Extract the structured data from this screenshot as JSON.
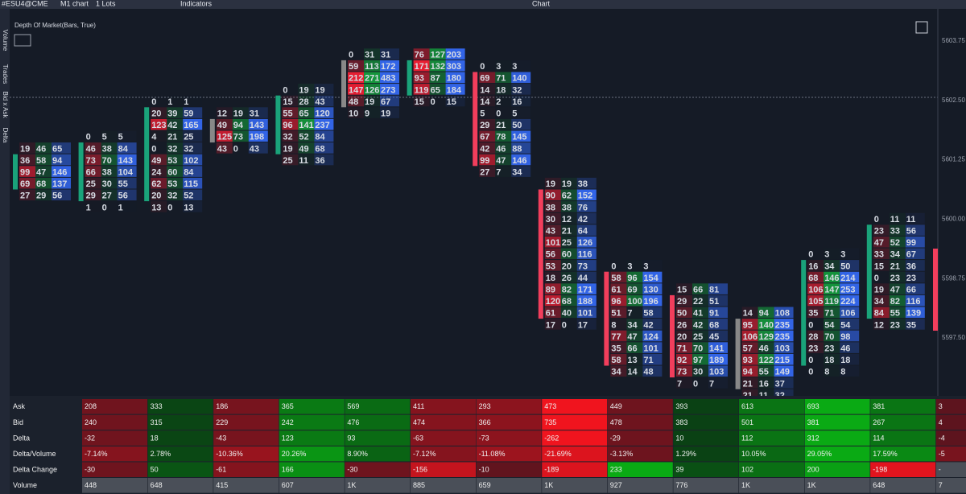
{
  "toolbar": {
    "symbol": "#ESU4@CME",
    "chart": "M1 chart",
    "lots": "1 Lots",
    "indicators": "Indicators",
    "title": "Chart"
  },
  "side_labels": [
    "Volume",
    "Trades",
    "Bid x Ask",
    "Delta"
  ],
  "indicator_label": "Depth Of Market(Bars, True)",
  "price_axis": [
    "5603.75",
    "5602.50",
    "5601.25",
    "5600.00",
    "5598.75",
    "5597.50"
  ],
  "footprint": {
    "bars": [
      {
        "rows": [
          [
            19,
            46,
            65
          ],
          [
            36,
            58,
            94
          ],
          [
            99,
            47,
            146
          ],
          [
            69,
            68,
            137
          ],
          [
            27,
            29,
            56
          ]
        ]
      },
      {
        "rows": [
          [
            0,
            5,
            5
          ],
          [
            46,
            38,
            84
          ],
          [
            73,
            70,
            143
          ],
          [
            66,
            38,
            104
          ],
          [
            25,
            30,
            55
          ],
          [
            29,
            27,
            56
          ],
          [
            1,
            0,
            1
          ]
        ]
      },
      {
        "rows": [
          [
            0,
            1,
            1
          ],
          [
            20,
            39,
            59
          ],
          [
            123,
            42,
            165
          ],
          [
            4,
            21,
            25
          ],
          [
            0,
            32,
            32
          ],
          [
            49,
            53,
            102
          ],
          [
            24,
            60,
            84
          ],
          [
            62,
            53,
            115
          ],
          [
            20,
            32,
            52
          ],
          [
            13,
            0,
            13
          ]
        ]
      },
      {
        "rows": [
          [
            12,
            19,
            31
          ],
          [
            49,
            94,
            143
          ],
          [
            125,
            73,
            198
          ],
          [
            43,
            0,
            43
          ]
        ]
      },
      {
        "rows": [
          [
            0,
            19,
            19
          ],
          [
            15,
            28,
            43
          ],
          [
            55,
            65,
            120
          ],
          [
            96,
            141,
            237
          ],
          [
            32,
            52,
            84
          ],
          [
            19,
            49,
            68
          ],
          [
            25,
            11,
            36
          ]
        ]
      },
      {
        "rows": [
          [
            0,
            31,
            31
          ],
          [
            59,
            113,
            172
          ],
          [
            212,
            271,
            483
          ],
          [
            147,
            126,
            273
          ],
          [
            48,
            19,
            67
          ],
          [
            10,
            9,
            19
          ]
        ]
      },
      {
        "rows": [
          [
            76,
            127,
            203
          ],
          [
            171,
            132,
            303
          ],
          [
            93,
            87,
            180
          ],
          [
            119,
            65,
            184
          ],
          [
            15,
            0,
            15
          ]
        ]
      },
      {
        "rows": [
          [
            0,
            3,
            3
          ],
          [
            69,
            71,
            140
          ],
          [
            14,
            18,
            32
          ],
          [
            14,
            2,
            16
          ],
          [
            5,
            0,
            5
          ],
          [
            29,
            21,
            50
          ],
          [
            67,
            78,
            145
          ],
          [
            42,
            46,
            88
          ],
          [
            99,
            47,
            146
          ],
          [
            27,
            7,
            34
          ]
        ]
      },
      {
        "rows": [
          [
            19,
            19,
            38
          ],
          [
            90,
            62,
            152
          ],
          [
            38,
            38,
            76
          ],
          [
            30,
            12,
            42
          ],
          [
            43,
            21,
            64
          ],
          [
            101,
            25,
            126
          ],
          [
            56,
            60,
            116
          ],
          [
            53,
            20,
            73
          ],
          [
            18,
            26,
            44
          ],
          [
            89,
            82,
            171
          ],
          [
            120,
            68,
            188
          ],
          [
            61,
            40,
            101
          ],
          [
            17,
            0,
            17
          ]
        ]
      },
      {
        "rows": [
          [
            0,
            3,
            3
          ],
          [
            58,
            96,
            154
          ],
          [
            61,
            69,
            130
          ],
          [
            96,
            100,
            196
          ],
          [
            51,
            7,
            58
          ],
          [
            8,
            34,
            42
          ],
          [
            77,
            47,
            124
          ],
          [
            35,
            66,
            101
          ],
          [
            58,
            13,
            71
          ],
          [
            34,
            14,
            48
          ]
        ]
      },
      {
        "rows": [
          [
            15,
            66,
            81
          ],
          [
            29,
            22,
            51
          ],
          [
            50,
            41,
            91
          ],
          [
            26,
            42,
            68
          ],
          [
            20,
            25,
            45
          ],
          [
            71,
            70,
            141
          ],
          [
            92,
            97,
            189
          ],
          [
            73,
            30,
            103
          ],
          [
            7,
            0,
            7
          ]
        ]
      },
      {
        "rows": [
          [
            14,
            94,
            108
          ],
          [
            95,
            140,
            235
          ],
          [
            106,
            129,
            235
          ],
          [
            57,
            46,
            103
          ],
          [
            93,
            122,
            215
          ],
          [
            94,
            55,
            149
          ],
          [
            21,
            16,
            37
          ],
          [
            21,
            11,
            32
          ]
        ]
      },
      {
        "rows": [
          [
            0,
            3,
            3
          ],
          [
            16,
            34,
            50
          ],
          [
            68,
            146,
            214
          ],
          [
            106,
            147,
            253
          ],
          [
            105,
            119,
            224
          ],
          [
            35,
            71,
            106
          ],
          [
            0,
            54,
            54
          ],
          [
            28,
            70,
            98
          ],
          [
            23,
            23,
            46
          ],
          [
            0,
            18,
            18
          ],
          [
            0,
            8,
            8
          ]
        ]
      },
      {
        "rows": [
          [
            0,
            11,
            11
          ],
          [
            23,
            33,
            56
          ],
          [
            47,
            52,
            99
          ],
          [
            33,
            34,
            67
          ],
          [
            15,
            21,
            36
          ],
          [
            0,
            23,
            23
          ],
          [
            19,
            47,
            66
          ],
          [
            34,
            82,
            116
          ],
          [
            84,
            55,
            139
          ],
          [
            12,
            23,
            35
          ]
        ]
      }
    ]
  },
  "table": {
    "rows": [
      {
        "label": "Ask",
        "cells": [
          "208",
          "333",
          "186",
          "365",
          "569",
          "411",
          "293",
          "473",
          "449",
          "393",
          "613",
          "693",
          "381",
          "3"
        ]
      },
      {
        "label": "Bid",
        "cells": [
          "240",
          "315",
          "229",
          "242",
          "476",
          "474",
          "366",
          "735",
          "478",
          "383",
          "501",
          "381",
          "267",
          "4"
        ]
      },
      {
        "label": "Delta",
        "cells": [
          "-32",
          "18",
          "-43",
          "123",
          "93",
          "-63",
          "-73",
          "-262",
          "-29",
          "10",
          "112",
          "312",
          "114",
          "-4"
        ]
      },
      {
        "label": "Delta/Volume",
        "cells": [
          "-7.14%",
          "2.78%",
          "-10.36%",
          "20.26%",
          "8.90%",
          "-7.12%",
          "-11.08%",
          "-21.69%",
          "-3.13%",
          "1.29%",
          "10.05%",
          "29.05%",
          "17.59%",
          "-5"
        ]
      },
      {
        "label": "Delta Change",
        "cells": [
          "-30",
          "50",
          "-61",
          "166",
          "-30",
          "-156",
          "-10",
          "-189",
          "233",
          "39",
          "102",
          "200",
          "-198",
          "-"
        ]
      },
      {
        "label": "Volume",
        "cells": [
          "448",
          "648",
          "415",
          "607",
          "1K",
          "885",
          "659",
          "1K",
          "927",
          "776",
          "1K",
          "1K",
          "648",
          "7"
        ]
      }
    ]
  }
}
